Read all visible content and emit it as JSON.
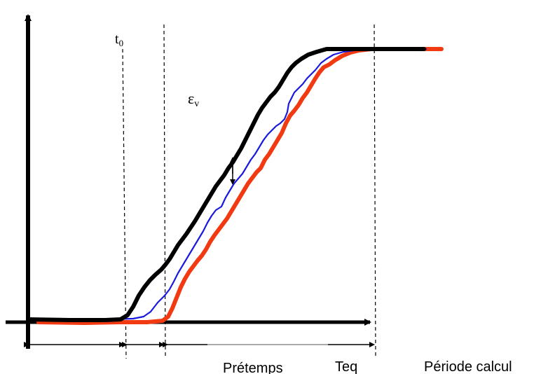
{
  "labels": {
    "t0_base": "t",
    "t0_sub": "0",
    "eps_base": "ε",
    "eps_sub": "v",
    "pretemps": "Prétemps",
    "teq": "Teq",
    "periode": "Période calcul"
  },
  "colors": {
    "black_curve": "#000000",
    "blue_curve": "#1a1adf",
    "red_curve": "#f23a12",
    "axes": "#000000"
  }
}
